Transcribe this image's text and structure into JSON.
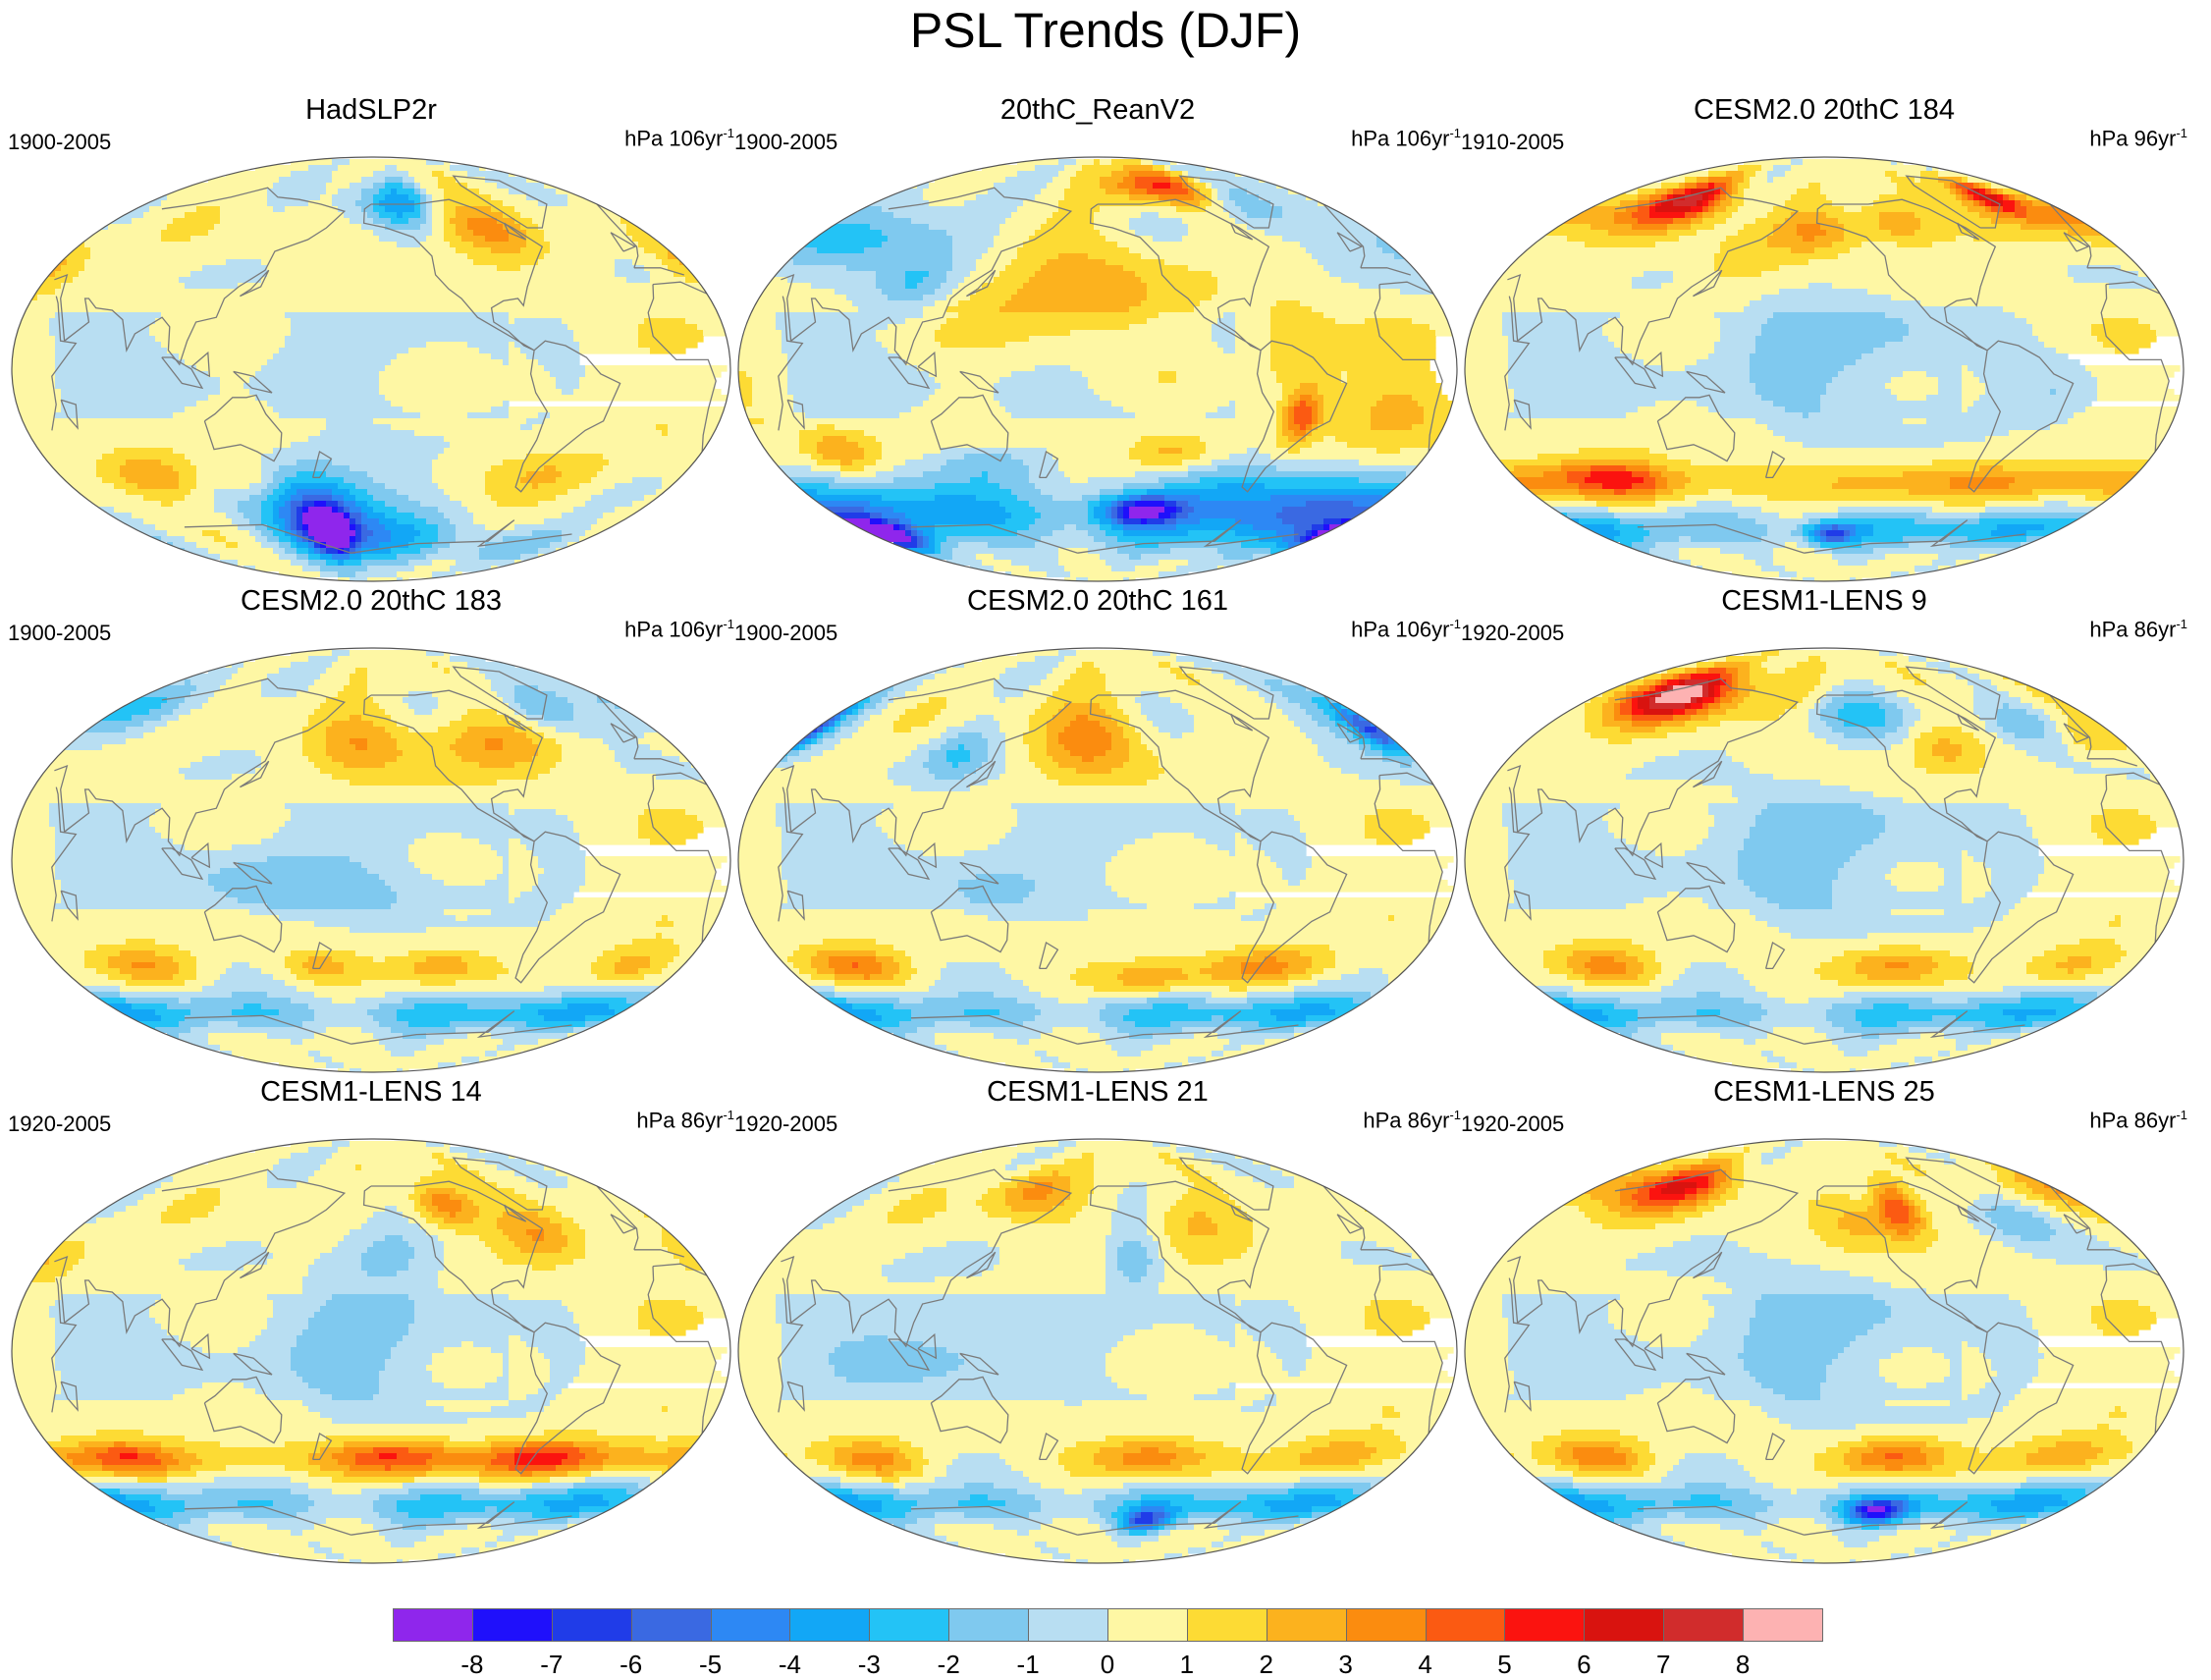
{
  "title": "PSL Trends (DJF)",
  "colors": {
    "levels": [
      "#8f26ec",
      "#1f10fb",
      "#203ce8",
      "#3a69e2",
      "#2d88f4",
      "#12a7f6",
      "#23c3f6",
      "#7fc9ef",
      "#b8def2",
      "#fef7a4",
      "#fddb34",
      "#fcb21e",
      "#fb8c0f",
      "#fb5a12",
      "#fb130f",
      "#d9130f",
      "#d12c2c",
      "#fdb2b2"
    ],
    "coastline": "#7a7a7a",
    "outline": "#555555"
  },
  "colorbar": {
    "ticks": [
      "-8",
      "-7",
      "-6",
      "-5",
      "-4",
      "-3",
      "-2",
      "-1",
      "0",
      "1",
      "2",
      "3",
      "4",
      "5",
      "6",
      "7",
      "8"
    ]
  },
  "panels": [
    {
      "title": "HadSLP2r",
      "period": "1900-2005",
      "units": "hPa 106yr",
      "units_sup": "-1",
      "blobs": [
        {
          "lon": 168,
          "lat": -68,
          "v": -8.5,
          "rx": 14,
          "ry": 8
        },
        {
          "lon": 165,
          "lat": -64,
          "v": -4.5,
          "rx": 32,
          "ry": 18
        },
        {
          "lon": 175,
          "lat": -62,
          "v": -2.5,
          "rx": 60,
          "ry": 22
        },
        {
          "lon": -160,
          "lat": -72,
          "v": -2.5,
          "rx": 60,
          "ry": 10
        },
        {
          "lon": -30,
          "lat": -75,
          "v": -2.2,
          "rx": 50,
          "ry": 8
        },
        {
          "lon": -55,
          "lat": -45,
          "v": 1.6,
          "rx": 35,
          "ry": 10
        },
        {
          "lon": 75,
          "lat": -45,
          "v": 2.6,
          "rx": 28,
          "ry": 9
        },
        {
          "lon": 130,
          "lat": -48,
          "v": 2.0,
          "rx": 18,
          "ry": 9
        },
        {
          "lon": -100,
          "lat": 62,
          "v": 2.5,
          "rx": 25,
          "ry": 12
        },
        {
          "lon": -150,
          "lat": 72,
          "v": -2.4,
          "rx": 40,
          "ry": 10
        },
        {
          "lon": -135,
          "lat": 70,
          "v": -2.0,
          "rx": 22,
          "ry": 10
        },
        {
          "lon": 20,
          "lat": 45,
          "v": 1.8,
          "rx": 15,
          "ry": 12
        },
        {
          "lon": -75,
          "lat": 58,
          "v": 2.0,
          "rx": 20,
          "ry": 10
        }
      ]
    },
    {
      "title": "20thC_ReanV2",
      "period": "1900-2005",
      "units": "hPa 106yr",
      "units_sup": "-1",
      "blobs": [
        {
          "lon": -175,
          "lat": 30,
          "v": 2.3,
          "rx": 55,
          "ry": 25
        },
        {
          "lon": -100,
          "lat": 78,
          "v": 4.5,
          "rx": 50,
          "ry": 8
        },
        {
          "lon": -45,
          "lat": 72,
          "v": -2.6,
          "rx": 25,
          "ry": 12
        },
        {
          "lon": 60,
          "lat": 55,
          "v": -3.0,
          "rx": 60,
          "ry": 14
        },
        {
          "lon": 100,
          "lat": 35,
          "v": -2.0,
          "rx": 20,
          "ry": 12
        },
        {
          "lon": -55,
          "lat": -20,
          "v": 4.3,
          "rx": 10,
          "ry": 12
        },
        {
          "lon": -60,
          "lat": 10,
          "v": 1.8,
          "rx": 20,
          "ry": 20
        },
        {
          "lon": -5,
          "lat": -15,
          "v": 1.6,
          "rx": 30,
          "ry": 18
        },
        {
          "lon": 60,
          "lat": -35,
          "v": 2.6,
          "rx": 18,
          "ry": 9
        },
        {
          "lon": 0,
          "lat": -62,
          "v": -5.5,
          "rx": 180,
          "ry": 14
        },
        {
          "lon": 30,
          "lat": -70,
          "v": -7.4,
          "rx": 25,
          "ry": 6
        },
        {
          "lon": -130,
          "lat": -60,
          "v": -6.2,
          "rx": 25,
          "ry": 6
        },
        {
          "lon": -80,
          "lat": -48,
          "v": -2.0,
          "rx": 40,
          "ry": 10
        },
        {
          "lon": 140,
          "lat": -40,
          "v": -1.8,
          "rx": 30,
          "ry": 8
        },
        {
          "lon": -120,
          "lat": -35,
          "v": 2.2,
          "rx": 25,
          "ry": 8
        }
      ]
    },
    {
      "title": "CESM2.0 20thC 184",
      "period": "1910-2005",
      "units": "hPa 96yr",
      "units_sup": "-1",
      "blobs": [
        {
          "lon": 90,
          "lat": 72,
          "v": 6.6,
          "rx": 32,
          "ry": 10
        },
        {
          "lon": -20,
          "lat": 74,
          "v": 6.0,
          "rx": 20,
          "ry": 8
        },
        {
          "lon": 10,
          "lat": 65,
          "v": 2.5,
          "rx": 60,
          "ry": 10
        },
        {
          "lon": -110,
          "lat": 62,
          "v": 3.0,
          "rx": 25,
          "ry": 10
        },
        {
          "lon": -165,
          "lat": 58,
          "v": 2.8,
          "rx": 30,
          "ry": 10
        },
        {
          "lon": 150,
          "lat": 45,
          "v": 1.5,
          "rx": 25,
          "ry": 12
        },
        {
          "lon": 0,
          "lat": -48,
          "v": 2.8,
          "rx": 180,
          "ry": 8
        },
        {
          "lon": 80,
          "lat": -46,
          "v": 3.3,
          "rx": 30,
          "ry": 8
        },
        {
          "lon": 0,
          "lat": -68,
          "v": -3.5,
          "rx": 180,
          "ry": 8
        },
        {
          "lon": -155,
          "lat": -70,
          "v": -5.2,
          "rx": 20,
          "ry": 5
        },
        {
          "lon": -150,
          "lat": 10,
          "v": -1.2,
          "rx": 60,
          "ry": 35
        },
        {
          "lon": -40,
          "lat": -10,
          "v": -1.2,
          "rx": 20,
          "ry": 15
        }
      ]
    },
    {
      "title": "CESM2.0 20thC 183",
      "period": "1900-2005",
      "units": "hPa 106yr",
      "units_sup": "-1",
      "blobs": [
        {
          "lon": -165,
          "lat": 50,
          "v": 2.4,
          "rx": 30,
          "ry": 14
        },
        {
          "lon": -90,
          "lat": 50,
          "v": 2.6,
          "rx": 35,
          "ry": 12
        },
        {
          "lon": 40,
          "lat": 65,
          "v": -2.5,
          "rx": 40,
          "ry": 12
        },
        {
          "lon": -40,
          "lat": 65,
          "v": -2.3,
          "rx": 25,
          "ry": 10
        },
        {
          "lon": 70,
          "lat": -45,
          "v": 2.7,
          "rx": 28,
          "ry": 8
        },
        {
          "lon": 170,
          "lat": -45,
          "v": 2.0,
          "rx": 22,
          "ry": 7
        },
        {
          "lon": -120,
          "lat": -45,
          "v": 2.2,
          "rx": 25,
          "ry": 7
        },
        {
          "lon": -10,
          "lat": -45,
          "v": 2.6,
          "rx": 22,
          "ry": 8
        },
        {
          "lon": 0,
          "lat": -65,
          "v": -3.6,
          "rx": 180,
          "ry": 8
        },
        {
          "lon": -160,
          "lat": -12,
          "v": -1.2,
          "rx": 60,
          "ry": 12
        },
        {
          "lon": 140,
          "lat": -10,
          "v": -1.3,
          "rx": 30,
          "ry": 15
        }
      ]
    },
    {
      "title": "CESM2.0 20thC 161",
      "period": "1900-2005",
      "units": "hPa 106yr",
      "units_sup": "-1",
      "blobs": [
        {
          "lon": -165,
          "lat": 52,
          "v": 3.2,
          "rx": 30,
          "ry": 16
        },
        {
          "lon": 15,
          "lat": 55,
          "v": -4.8,
          "rx": 12,
          "ry": 10
        },
        {
          "lon": 10,
          "lat": 60,
          "v": -2.5,
          "rx": 30,
          "ry": 15
        },
        {
          "lon": 60,
          "lat": -45,
          "v": 3.6,
          "rx": 28,
          "ry": 8
        },
        {
          "lon": -60,
          "lat": -45,
          "v": 2.8,
          "rx": 35,
          "ry": 8
        },
        {
          "lon": -130,
          "lat": -50,
          "v": 2.0,
          "rx": 30,
          "ry": 7
        },
        {
          "lon": 0,
          "lat": -65,
          "v": -3.5,
          "rx": 180,
          "ry": 8
        },
        {
          "lon": 120,
          "lat": 45,
          "v": -2.2,
          "rx": 20,
          "ry": 12
        },
        {
          "lon": 140,
          "lat": -15,
          "v": -1.3,
          "rx": 30,
          "ry": 15
        }
      ]
    },
    {
      "title": "CESM1-LENS 9",
      "period": "1920-2005",
      "units": "hPa 86yr",
      "units_sup": "-1",
      "blobs": [
        {
          "lon": 85,
          "lat": 70,
          "v": 5.8,
          "rx": 32,
          "ry": 10
        },
        {
          "lon": 90,
          "lat": 72,
          "v": 3.0,
          "rx": 70,
          "ry": 12
        },
        {
          "lon": -140,
          "lat": 62,
          "v": -2.6,
          "rx": 30,
          "ry": 10
        },
        {
          "lon": -30,
          "lat": 58,
          "v": -2.5,
          "rx": 25,
          "ry": 10
        },
        {
          "lon": 0,
          "lat": 52,
          "v": 1.8,
          "rx": 20,
          "ry": 8
        },
        {
          "lon": -90,
          "lat": 48,
          "v": 1.8,
          "rx": 20,
          "ry": 10
        },
        {
          "lon": 75,
          "lat": -45,
          "v": 3.2,
          "rx": 28,
          "ry": 8
        },
        {
          "lon": -120,
          "lat": -45,
          "v": 2.7,
          "rx": 30,
          "ry": 8
        },
        {
          "lon": -15,
          "lat": -45,
          "v": 2.4,
          "rx": 25,
          "ry": 8
        },
        {
          "lon": 0,
          "lat": -65,
          "v": -3.4,
          "rx": 180,
          "ry": 8
        },
        {
          "lon": -160,
          "lat": 5,
          "v": -1.3,
          "rx": 60,
          "ry": 30
        }
      ]
    },
    {
      "title": "CESM1-LENS 14",
      "period": "1920-2005",
      "units": "hPa 86yr",
      "units_sup": "-1",
      "blobs": [
        {
          "lon": -110,
          "lat": 62,
          "v": 4.0,
          "rx": 22,
          "ry": 10
        },
        {
          "lon": -60,
          "lat": 50,
          "v": 2.4,
          "rx": 25,
          "ry": 12
        },
        {
          "lon": -150,
          "lat": 40,
          "v": -2.0,
          "rx": 30,
          "ry": 14
        },
        {
          "lon": 20,
          "lat": 40,
          "v": 1.5,
          "rx": 20,
          "ry": 10
        },
        {
          "lon": 0,
          "lat": -46,
          "v": 2.5,
          "rx": 180,
          "ry": 7
        },
        {
          "lon": -150,
          "lat": -45,
          "v": 3.3,
          "rx": 35,
          "ry": 8
        },
        {
          "lon": -60,
          "lat": -45,
          "v": 3.0,
          "rx": 30,
          "ry": 8
        },
        {
          "lon": 60,
          "lat": -45,
          "v": 2.5,
          "rx": 25,
          "ry": 8
        },
        {
          "lon": 0,
          "lat": -65,
          "v": -3.5,
          "rx": 180,
          "ry": 8
        },
        {
          "lon": -160,
          "lat": 0,
          "v": -1.2,
          "rx": 50,
          "ry": 25
        }
      ]
    },
    {
      "title": "CESM1-LENS 21",
      "period": "1920-2005",
      "units": "hPa 86yr",
      "units_sup": "-1",
      "blobs": [
        {
          "lon": 150,
          "lat": 68,
          "v": 3.0,
          "rx": 30,
          "ry": 10
        },
        {
          "lon": -100,
          "lat": 55,
          "v": 2.2,
          "rx": 25,
          "ry": 12
        },
        {
          "lon": -140,
          "lat": 38,
          "v": -2.6,
          "rx": 15,
          "ry": 12
        },
        {
          "lon": 70,
          "lat": -46,
          "v": 3.2,
          "rx": 28,
          "ry": 8
        },
        {
          "lon": -130,
          "lat": -45,
          "v": 3.0,
          "rx": 35,
          "ry": 8
        },
        {
          "lon": -20,
          "lat": -45,
          "v": 3.0,
          "rx": 30,
          "ry": 8
        },
        {
          "lon": 0,
          "lat": -65,
          "v": -3.6,
          "rx": 180,
          "ry": 8
        },
        {
          "lon": -120,
          "lat": -72,
          "v": -5.0,
          "rx": 20,
          "ry": 5
        },
        {
          "lon": 120,
          "lat": 0,
          "v": -1.2,
          "rx": 40,
          "ry": 25
        }
      ]
    },
    {
      "title": "CESM1-LENS 25",
      "period": "1920-2005",
      "units": "hPa 86yr",
      "units_sup": "-1",
      "blobs": [
        {
          "lon": 90,
          "lat": 70,
          "v": 5.6,
          "rx": 35,
          "ry": 10
        },
        {
          "lon": -110,
          "lat": 60,
          "v": 5.0,
          "rx": 15,
          "ry": 12
        },
        {
          "lon": -140,
          "lat": 55,
          "v": 2.5,
          "rx": 25,
          "ry": 12
        },
        {
          "lon": 20,
          "lat": 70,
          "v": 2.5,
          "rx": 40,
          "ry": 10
        },
        {
          "lon": -40,
          "lat": 55,
          "v": -2.5,
          "rx": 25,
          "ry": 10
        },
        {
          "lon": 70,
          "lat": -45,
          "v": 3.5,
          "rx": 28,
          "ry": 8
        },
        {
          "lon": -120,
          "lat": -45,
          "v": 3.7,
          "rx": 30,
          "ry": 8
        },
        {
          "lon": -20,
          "lat": -45,
          "v": 3.0,
          "rx": 30,
          "ry": 8
        },
        {
          "lon": 0,
          "lat": -65,
          "v": -3.7,
          "rx": 180,
          "ry": 8
        },
        {
          "lon": -120,
          "lat": -68,
          "v": -6.0,
          "rx": 22,
          "ry": 5
        },
        {
          "lon": -160,
          "lat": 10,
          "v": -1.2,
          "rx": 60,
          "ry": 35
        }
      ]
    }
  ]
}
